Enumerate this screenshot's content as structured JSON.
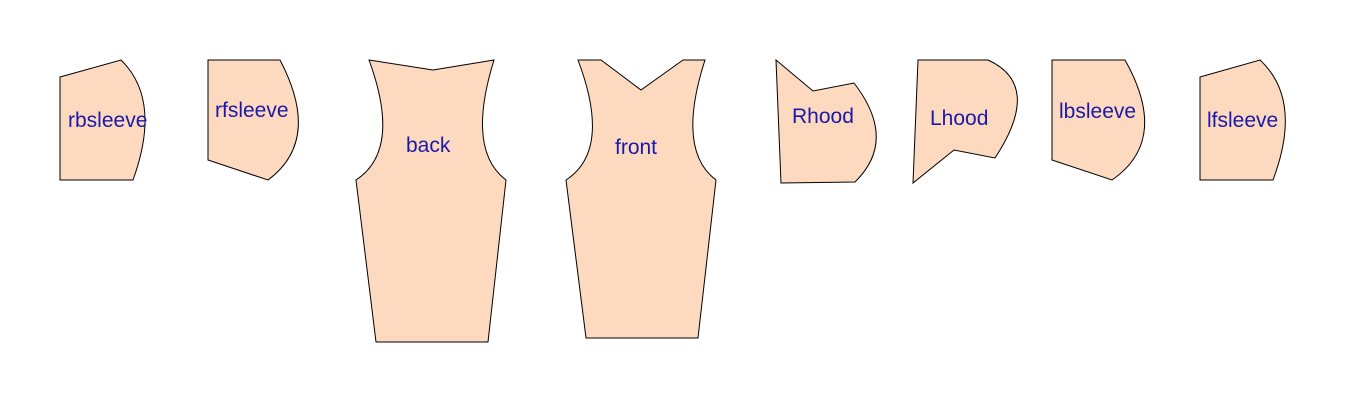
{
  "colors": {
    "piece_fill": "#fdd9c0",
    "piece_stroke": "#000000",
    "label_color": "#1a1aa8",
    "background": "#ffffff"
  },
  "pieces": {
    "rbsleeve": "rbsleeve",
    "rfsleeve": "rfsleeve",
    "back": "back",
    "front": "front",
    "rhood": "Rhood",
    "lhood": "Lhood",
    "lbsleeve": "lbsleeve",
    "lfsleeve": "lfsleeve"
  }
}
